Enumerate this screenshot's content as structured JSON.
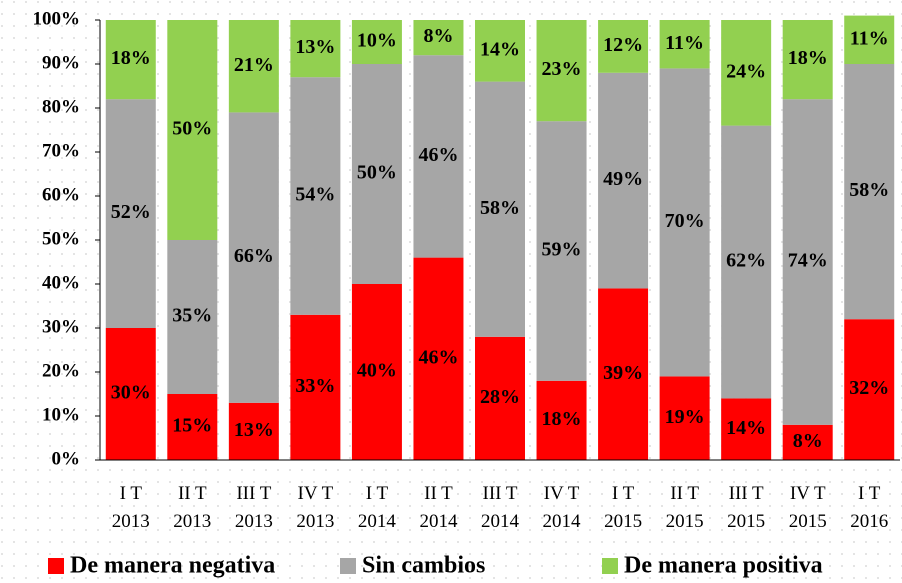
{
  "chart_data": {
    "type": "stacked_bar_100",
    "categories": [
      "I T\n2013",
      "II T\n2013",
      "III T\n2013",
      "IV T\n2013",
      "I T\n2014",
      "II T\n2014",
      "III T\n2014",
      "IV T\n2014",
      "I T\n2015",
      "II T\n2015",
      "III T\n2015",
      "IV T\n2015",
      "I T\n2016"
    ],
    "series": [
      {
        "name": "De manera negativa",
        "color": "#ff0000",
        "values": [
          30,
          15,
          13,
          33,
          40,
          46,
          28,
          18,
          39,
          19,
          14,
          8,
          32
        ],
        "value_labels": [
          "30%",
          "15%",
          "13%",
          "33%",
          "40%",
          "46%",
          "28%",
          "18%",
          "39%",
          "19%",
          "14%",
          "8%",
          "32%"
        ]
      },
      {
        "name": "Sin cambios",
        "color": "#a6a6a6",
        "values": [
          52,
          35,
          66,
          54,
          50,
          46,
          58,
          59,
          49,
          70,
          62,
          74,
          58
        ],
        "value_labels": [
          "52%",
          "35%",
          "66%",
          "54%",
          "50%",
          "46%",
          "58%",
          "59%",
          "49%",
          "70%",
          "62%",
          "74%",
          "58%"
        ]
      },
      {
        "name": "De manera positiva",
        "color": "#92d050",
        "values": [
          18,
          50,
          21,
          13,
          10,
          8,
          14,
          23,
          12,
          11,
          24,
          18,
          11
        ],
        "value_labels": [
          "18%",
          "50%",
          "21%",
          "13%",
          "10%",
          "8%",
          "14%",
          "23%",
          "12%",
          "11%",
          "24%",
          "18%",
          "11%"
        ]
      }
    ],
    "ylim": [
      0,
      100
    ],
    "yticks": [
      {
        "value": 0,
        "label": "0%"
      },
      {
        "value": 10,
        "label": "10%"
      },
      {
        "value": 20,
        "label": "20%"
      },
      {
        "value": 30,
        "label": "30%"
      },
      {
        "value": 40,
        "label": "40%"
      },
      {
        "value": 50,
        "label": "50%"
      },
      {
        "value": 60,
        "label": "60%"
      },
      {
        "value": 70,
        "label": "70%"
      },
      {
        "value": 80,
        "label": "80%"
      },
      {
        "value": 90,
        "label": "90%"
      },
      {
        "value": 100,
        "label": "100%"
      }
    ],
    "legend": "bottom"
  }
}
